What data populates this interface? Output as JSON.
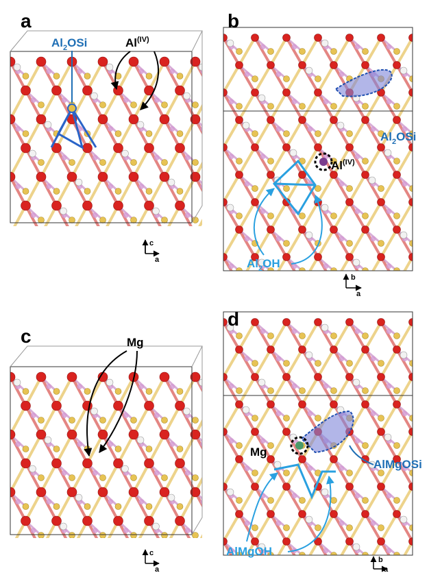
{
  "panels": [
    {
      "label": "a",
      "annotations": [
        {
          "text": [
            "Al",
            "2",
            "OSi"
          ]
        },
        {
          "text": [
            "Al",
            "(IV)"
          ]
        }
      ],
      "axes": [
        "c",
        "a"
      ]
    },
    {
      "label": "b",
      "annotations": [
        {
          "text": [
            "Al",
            "2",
            "OSi"
          ]
        },
        {
          "text": [
            "Al",
            "(IV)"
          ]
        },
        {
          "text": [
            "Al",
            "2",
            "OH"
          ]
        }
      ],
      "axes": [
        "b",
        "a"
      ]
    },
    {
      "label": "c",
      "annotations": [
        {
          "text": [
            "Mg"
          ]
        }
      ],
      "axes": [
        "c",
        "a"
      ]
    },
    {
      "label": "d",
      "annotations": [
        {
          "text": [
            "Mg"
          ]
        },
        {
          "text": [
            "AlMgOSi"
          ]
        },
        {
          "text": [
            "AlMgOH"
          ]
        }
      ],
      "axes": [
        "b",
        "a"
      ]
    }
  ]
}
